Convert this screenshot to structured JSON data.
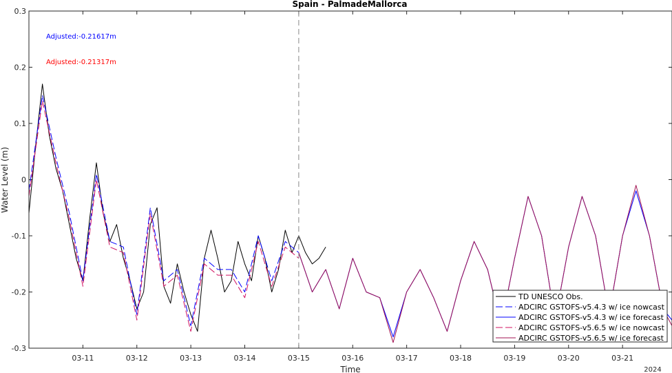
{
  "chart_data": {
    "type": "line",
    "title": "Spain - PalmadeMallorca",
    "xlabel": "Time",
    "ylabel": "Water Level (m)",
    "year_label": "2024",
    "xlim": [
      "2024-03-10T00:00",
      "2024-03-21T22:00"
    ],
    "ylim": [
      -0.3,
      0.3
    ],
    "x_ticks": [
      "03-11",
      "03-12",
      "03-13",
      "03-14",
      "03-15",
      "03-16",
      "03-17",
      "03-18",
      "03-19",
      "03-20",
      "03-21"
    ],
    "y_ticks": [
      {
        "value": 0.3,
        "label": "0.3"
      },
      {
        "value": 0.2,
        "label": "0.2"
      },
      {
        "value": 0.1,
        "label": "0.1"
      },
      {
        "value": 0,
        "label": "0"
      },
      {
        "value": -0.1,
        "label": "-0.1"
      },
      {
        "value": -0.2,
        "label": "-0.2"
      },
      {
        "value": -0.3,
        "label": "-0.3"
      }
    ],
    "forecast_start": "2024-03-15T00:00",
    "legend_position": "bottom-right",
    "annotations": [
      {
        "text": "Adjusted:-0.21617m",
        "color": "#0000ff"
      },
      {
        "text": "Adjusted:-0.21317m",
        "color": "#ff0000"
      }
    ],
    "series": [
      {
        "name": "TD UNESCO Obs.",
        "color": "#000000",
        "dash": "solid",
        "x": [
          "2024-03-10T00:00",
          "2024-03-10T03:00",
          "2024-03-10T06:00",
          "2024-03-10T09:00",
          "2024-03-10T12:00",
          "2024-03-10T15:00",
          "2024-03-10T18:00",
          "2024-03-10T21:00",
          "2024-03-11T00:00",
          "2024-03-11T03:00",
          "2024-03-11T06:00",
          "2024-03-11T09:00",
          "2024-03-11T12:00",
          "2024-03-11T15:00",
          "2024-03-11T18:00",
          "2024-03-11T21:00",
          "2024-03-12T00:00",
          "2024-03-12T03:00",
          "2024-03-12T06:00",
          "2024-03-12T09:00",
          "2024-03-12T12:00",
          "2024-03-12T15:00",
          "2024-03-12T18:00",
          "2024-03-12T21:00",
          "2024-03-13T00:00",
          "2024-03-13T03:00",
          "2024-03-13T06:00",
          "2024-03-13T09:00",
          "2024-03-13T12:00",
          "2024-03-13T15:00",
          "2024-03-13T18:00",
          "2024-03-13T21:00",
          "2024-03-14T00:00",
          "2024-03-14T03:00",
          "2024-03-14T06:00",
          "2024-03-14T09:00",
          "2024-03-14T12:00",
          "2024-03-14T15:00",
          "2024-03-14T18:00",
          "2024-03-14T21:00",
          "2024-03-15T00:00",
          "2024-03-15T03:00",
          "2024-03-15T06:00",
          "2024-03-15T09:00",
          "2024-03-15T12:00"
        ],
        "y": [
          -0.06,
          0.06,
          0.17,
          0.08,
          0.02,
          -0.02,
          -0.08,
          -0.14,
          -0.18,
          -0.07,
          0.03,
          -0.06,
          -0.11,
          -0.08,
          -0.14,
          -0.18,
          -0.23,
          -0.2,
          -0.08,
          -0.05,
          -0.19,
          -0.22,
          -0.15,
          -0.2,
          -0.24,
          -0.27,
          -0.14,
          -0.09,
          -0.14,
          -0.2,
          -0.18,
          -0.11,
          -0.15,
          -0.18,
          -0.1,
          -0.14,
          -0.2,
          -0.16,
          -0.09,
          -0.13,
          -0.1,
          -0.13,
          -0.15,
          -0.14,
          -0.12
        ]
      },
      {
        "name": "ADCIRC GSTOFS-v5.4.3 w/ ice nowcast",
        "color": "#0000ff",
        "dash": "dashed",
        "x": [
          "2024-03-10T00:00",
          "2024-03-10T06:00",
          "2024-03-10T12:00",
          "2024-03-10T18:00",
          "2024-03-11T00:00",
          "2024-03-11T06:00",
          "2024-03-11T12:00",
          "2024-03-11T18:00",
          "2024-03-12T00:00",
          "2024-03-12T06:00",
          "2024-03-12T12:00",
          "2024-03-12T18:00",
          "2024-03-13T00:00",
          "2024-03-13T06:00",
          "2024-03-13T12:00",
          "2024-03-13T18:00",
          "2024-03-14T00:00",
          "2024-03-14T06:00",
          "2024-03-14T12:00",
          "2024-03-14T18:00",
          "2024-03-15T00:00"
        ],
        "y": [
          -0.02,
          0.15,
          0.04,
          -0.06,
          -0.18,
          0.01,
          -0.11,
          -0.12,
          -0.24,
          -0.05,
          -0.18,
          -0.16,
          -0.26,
          -0.14,
          -0.16,
          -0.16,
          -0.2,
          -0.1,
          -0.18,
          -0.11,
          -0.13
        ]
      },
      {
        "name": "ADCIRC GSTOFS-v5.4.3 w/ ice forecast",
        "color": "#0000ff",
        "dash": "solid",
        "x": [
          "2024-03-15T00:00",
          "2024-03-15T06:00",
          "2024-03-15T12:00",
          "2024-03-15T18:00",
          "2024-03-16T00:00",
          "2024-03-16T06:00",
          "2024-03-16T12:00",
          "2024-03-16T18:00",
          "2024-03-17T00:00",
          "2024-03-17T06:00",
          "2024-03-17T12:00",
          "2024-03-17T18:00",
          "2024-03-18T00:00",
          "2024-03-18T06:00",
          "2024-03-18T12:00",
          "2024-03-18T18:00",
          "2024-03-19T00:00",
          "2024-03-19T06:00",
          "2024-03-19T12:00",
          "2024-03-19T18:00",
          "2024-03-20T00:00",
          "2024-03-20T06:00",
          "2024-03-20T12:00",
          "2024-03-20T18:00",
          "2024-03-21T00:00",
          "2024-03-21T06:00",
          "2024-03-21T12:00",
          "2024-03-21T18:00",
          "2024-03-21T22:00"
        ],
        "y": [
          -0.13,
          -0.2,
          -0.16,
          -0.23,
          -0.14,
          -0.2,
          -0.21,
          -0.28,
          -0.2,
          -0.16,
          -0.21,
          -0.27,
          -0.18,
          -0.11,
          -0.16,
          -0.26,
          -0.14,
          -0.03,
          -0.1,
          -0.25,
          -0.12,
          -0.03,
          -0.1,
          -0.24,
          -0.1,
          -0.02,
          -0.1,
          -0.23,
          -0.25
        ]
      },
      {
        "name": "ADCIRC GSTOFS-v5.6.5 w/ ice nowcast",
        "color": "#d01060",
        "dash": "dashed",
        "x": [
          "2024-03-10T00:00",
          "2024-03-10T06:00",
          "2024-03-10T12:00",
          "2024-03-10T18:00",
          "2024-03-11T00:00",
          "2024-03-11T06:00",
          "2024-03-11T12:00",
          "2024-03-11T18:00",
          "2024-03-12T00:00",
          "2024-03-12T06:00",
          "2024-03-12T12:00",
          "2024-03-12T18:00",
          "2024-03-13T00:00",
          "2024-03-13T06:00",
          "2024-03-13T12:00",
          "2024-03-13T18:00",
          "2024-03-14T00:00",
          "2024-03-14T06:00",
          "2024-03-14T12:00",
          "2024-03-14T18:00",
          "2024-03-15T00:00"
        ],
        "y": [
          -0.03,
          0.14,
          0.03,
          -0.07,
          -0.19,
          0.0,
          -0.12,
          -0.13,
          -0.25,
          -0.06,
          -0.19,
          -0.17,
          -0.27,
          -0.15,
          -0.17,
          -0.17,
          -0.21,
          -0.11,
          -0.19,
          -0.12,
          -0.14
        ]
      },
      {
        "name": "ADCIRC GSTOFS-v5.6.5 w/ ice forecast",
        "color": "#a01050",
        "dash": "solid",
        "x": [
          "2024-03-15T00:00",
          "2024-03-15T06:00",
          "2024-03-15T12:00",
          "2024-03-15T18:00",
          "2024-03-16T00:00",
          "2024-03-16T06:00",
          "2024-03-16T12:00",
          "2024-03-16T18:00",
          "2024-03-17T00:00",
          "2024-03-17T06:00",
          "2024-03-17T12:00",
          "2024-03-17T18:00",
          "2024-03-18T00:00",
          "2024-03-18T06:00",
          "2024-03-18T12:00",
          "2024-03-18T18:00",
          "2024-03-19T00:00",
          "2024-03-19T06:00",
          "2024-03-19T12:00",
          "2024-03-19T18:00",
          "2024-03-20T00:00",
          "2024-03-20T06:00",
          "2024-03-20T12:00",
          "2024-03-20T18:00",
          "2024-03-21T00:00",
          "2024-03-21T06:00",
          "2024-03-21T12:00",
          "2024-03-21T18:00",
          "2024-03-21T22:00"
        ],
        "y": [
          -0.13,
          -0.2,
          -0.16,
          -0.23,
          -0.14,
          -0.2,
          -0.21,
          -0.29,
          -0.2,
          -0.16,
          -0.21,
          -0.27,
          -0.18,
          -0.11,
          -0.16,
          -0.26,
          -0.14,
          -0.03,
          -0.1,
          -0.25,
          -0.12,
          -0.03,
          -0.1,
          -0.24,
          -0.1,
          -0.01,
          -0.1,
          -0.23,
          -0.26
        ]
      }
    ]
  }
}
